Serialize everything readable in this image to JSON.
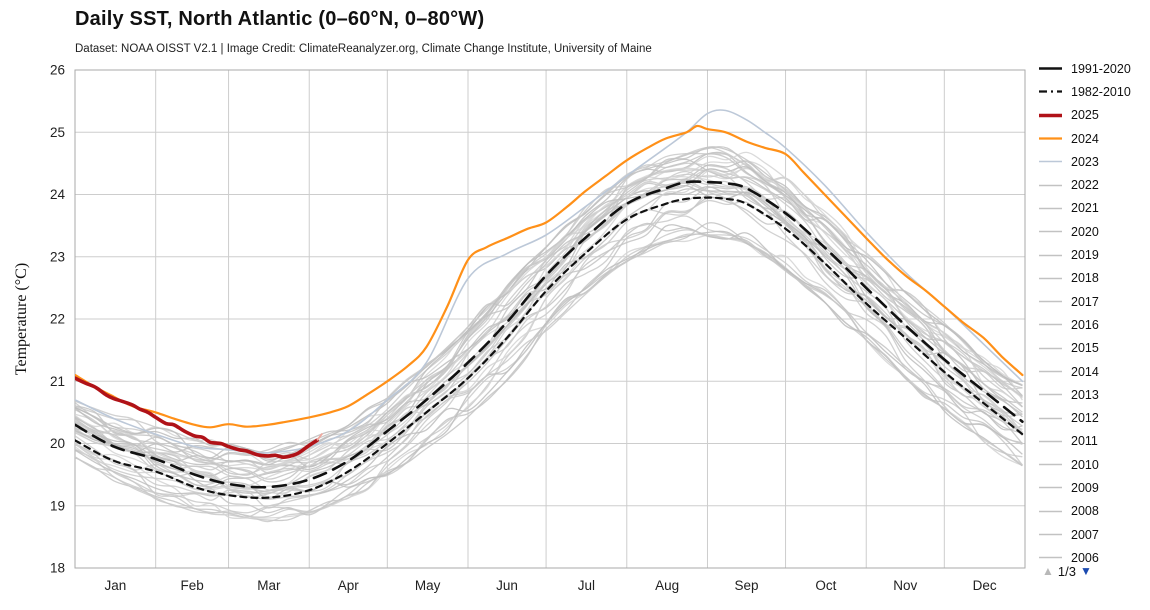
{
  "chart_data": {
    "type": "line",
    "title": "Daily SST, North Atlantic (0–60°N, 0–80°W)",
    "subtitle": "Dataset: NOAA OISST V2.1 | Image Credit: ClimateReanalyzer.org, Climate Change Institute, University of Maine",
    "xlabel": "",
    "ylabel": "Temperature (°C)",
    "x_unit": "day_of_year",
    "ylim": [
      18,
      26
    ],
    "yticks": [
      18,
      19,
      20,
      21,
      22,
      23,
      24,
      25,
      26
    ],
    "grid": true,
    "months": [
      "Jan",
      "Feb",
      "Mar",
      "Apr",
      "May",
      "Jun",
      "Jul",
      "Aug",
      "Sep",
      "Oct",
      "Nov",
      "Dec"
    ],
    "month_boundaries": [
      0,
      31,
      59,
      90,
      120,
      151,
      181,
      212,
      243,
      273,
      304,
      334,
      365
    ],
    "series": [
      {
        "key": "y2025",
        "name": "2025",
        "color": "#b01218",
        "width": 3.6,
        "dash": "",
        "z": 5,
        "x": [
          0,
          4,
          8,
          12,
          15,
          18,
          22,
          25,
          28,
          31,
          35,
          38,
          42,
          46,
          49,
          52,
          56,
          59,
          63,
          66,
          70,
          74,
          77,
          80,
          83,
          86,
          90,
          93
        ],
        "y": [
          21.05,
          20.97,
          20.9,
          20.78,
          20.72,
          20.68,
          20.62,
          20.55,
          20.5,
          20.42,
          20.32,
          20.3,
          20.2,
          20.12,
          20.1,
          20.02,
          20.0,
          19.95,
          19.9,
          19.88,
          19.82,
          19.8,
          19.81,
          19.78,
          19.8,
          19.85,
          19.97,
          20.05
        ],
        "tip": {
          "x": [
            93,
            95
          ],
          "y": [
            20.05,
            20.16
          ],
          "color": "#eea89e",
          "width": 1.8
        }
      },
      {
        "key": "y2024",
        "name": "2024",
        "color": "#ff9018",
        "width": 2.2,
        "dash": "",
        "z": 4,
        "x": [
          0,
          8,
          15,
          22,
          31,
          38,
          46,
          52,
          59,
          66,
          74,
          80,
          90,
          98,
          105,
          112,
          120,
          128,
          135,
          143,
          151,
          158,
          166,
          174,
          181,
          189,
          196,
          204,
          212,
          220,
          227,
          235,
          239,
          243,
          250,
          258,
          265,
          273,
          280,
          288,
          296,
          304,
          311,
          319,
          327,
          334,
          341,
          349,
          356,
          364
        ],
        "y": [
          21.1,
          20.9,
          20.75,
          20.6,
          20.5,
          20.4,
          20.3,
          20.26,
          20.31,
          20.27,
          20.3,
          20.34,
          20.42,
          20.5,
          20.6,
          20.78,
          21.0,
          21.25,
          21.55,
          22.2,
          22.95,
          23.15,
          23.3,
          23.45,
          23.55,
          23.8,
          24.05,
          24.3,
          24.55,
          24.75,
          24.9,
          25.0,
          25.1,
          25.05,
          25.0,
          24.85,
          24.75,
          24.65,
          24.35,
          24.0,
          23.65,
          23.3,
          23.0,
          22.7,
          22.45,
          22.2,
          21.95,
          21.7,
          21.4,
          21.1
        ]
      },
      {
        "key": "mean_1991_2020",
        "name": "1991-2020",
        "color": "#111111",
        "width": 2.6,
        "dash": "13 8",
        "legend_dash": "",
        "z": 3,
        "x": [
          0,
          15,
          31,
          46,
          59,
          74,
          90,
          105,
          120,
          135,
          151,
          166,
          181,
          196,
          212,
          227,
          235,
          243,
          250,
          258,
          273,
          288,
          304,
          319,
          334,
          349,
          364
        ],
        "y": [
          20.3,
          19.95,
          19.75,
          19.5,
          19.35,
          19.3,
          19.42,
          19.72,
          20.2,
          20.7,
          21.3,
          21.95,
          22.7,
          23.3,
          23.85,
          24.1,
          24.2,
          24.2,
          24.18,
          24.1,
          23.7,
          23.15,
          22.5,
          21.9,
          21.35,
          20.85,
          20.35
        ]
      },
      {
        "key": "mean_1982_2010",
        "name": "1982-2010",
        "color": "#111111",
        "width": 2.2,
        "dash": "6 5",
        "legend_dash": "8 4 2 4",
        "z": 2,
        "x": [
          0,
          15,
          31,
          46,
          59,
          74,
          90,
          105,
          120,
          135,
          151,
          166,
          181,
          196,
          212,
          227,
          235,
          243,
          250,
          258,
          273,
          288,
          304,
          319,
          334,
          349,
          364
        ],
        "y": [
          20.05,
          19.72,
          19.55,
          19.3,
          19.17,
          19.13,
          19.25,
          19.55,
          20.0,
          20.5,
          21.05,
          21.7,
          22.45,
          23.05,
          23.6,
          23.85,
          23.93,
          23.95,
          23.93,
          23.85,
          23.45,
          22.9,
          22.25,
          21.7,
          21.15,
          20.65,
          20.15
        ]
      },
      {
        "key": "y2023",
        "name": "2023",
        "color": "#bcc8d8",
        "width": 1.6,
        "dash": "",
        "z": 1,
        "x": [
          0,
          15,
          31,
          46,
          59,
          74,
          90,
          105,
          120,
          135,
          151,
          166,
          181,
          196,
          212,
          227,
          235,
          243,
          250,
          258,
          265,
          273,
          288,
          304,
          319,
          334,
          349,
          364
        ],
        "y": [
          20.7,
          20.4,
          20.15,
          19.95,
          19.9,
          19.85,
          19.95,
          20.2,
          20.7,
          21.3,
          22.65,
          23.05,
          23.35,
          23.8,
          24.3,
          24.75,
          25.0,
          25.3,
          25.35,
          25.2,
          25.0,
          24.75,
          24.15,
          23.4,
          22.75,
          22.2,
          21.6,
          21.0
        ]
      }
    ],
    "gray_band": {
      "description": "envelope of individual years 1981-2022 drawn as thin gray lines",
      "color": "#c6c6c6",
      "line_count": 38,
      "x": [
        0,
        15,
        31,
        46,
        59,
        74,
        90,
        105,
        120,
        135,
        151,
        166,
        181,
        196,
        212,
        227,
        243,
        258,
        273,
        288,
        304,
        319,
        334,
        349,
        364
      ],
      "lower": [
        19.75,
        19.4,
        19.1,
        18.9,
        18.8,
        18.72,
        18.85,
        19.1,
        19.45,
        19.9,
        20.4,
        21.0,
        21.7,
        22.35,
        22.9,
        23.2,
        23.3,
        23.2,
        22.75,
        22.2,
        21.6,
        21.0,
        20.5,
        20.0,
        19.6
      ],
      "upper": [
        20.75,
        20.45,
        20.3,
        20.1,
        20.0,
        19.95,
        20.1,
        20.35,
        20.75,
        21.3,
        21.9,
        22.55,
        23.2,
        23.8,
        24.35,
        24.65,
        24.8,
        24.7,
        24.3,
        23.75,
        23.1,
        22.5,
        21.95,
        21.4,
        20.95
      ]
    }
  },
  "legend": {
    "entries": [
      {
        "label": "1991-2020",
        "series": "mean_1991_2020"
      },
      {
        "label": "1982-2010",
        "series": "mean_1982_2010"
      },
      {
        "label": "2025",
        "series": "y2025"
      },
      {
        "label": "2024",
        "series": "y2024"
      },
      {
        "label": "2023",
        "series": "y2023"
      },
      {
        "label": "2022",
        "series": "gray"
      },
      {
        "label": "2021",
        "series": "gray"
      },
      {
        "label": "2020",
        "series": "gray"
      },
      {
        "label": "2019",
        "series": "gray"
      },
      {
        "label": "2018",
        "series": "gray"
      },
      {
        "label": "2017",
        "series": "gray"
      },
      {
        "label": "2016",
        "series": "gray"
      },
      {
        "label": "2015",
        "series": "gray"
      },
      {
        "label": "2014",
        "series": "gray"
      },
      {
        "label": "2013",
        "series": "gray"
      },
      {
        "label": "2012",
        "series": "gray"
      },
      {
        "label": "2011",
        "series": "gray"
      },
      {
        "label": "2010",
        "series": "gray"
      },
      {
        "label": "2009",
        "series": "gray"
      },
      {
        "label": "2008",
        "series": "gray"
      },
      {
        "label": "2007",
        "series": "gray"
      },
      {
        "label": "2006",
        "series": "gray"
      }
    ],
    "gray_swatch": {
      "color": "#c2c2c2",
      "width": 1.6,
      "dash": ""
    },
    "pagination": {
      "current": "1/3",
      "up_symbol": "▲",
      "down_symbol": "▼",
      "up_color": "#b8b8b8",
      "down_color": "#1b4ab0"
    }
  },
  "colors": {
    "grid": "#cdcdcd",
    "frame": "#aaaaaa",
    "tick_text": "#222222",
    "title_text": "#111111"
  }
}
